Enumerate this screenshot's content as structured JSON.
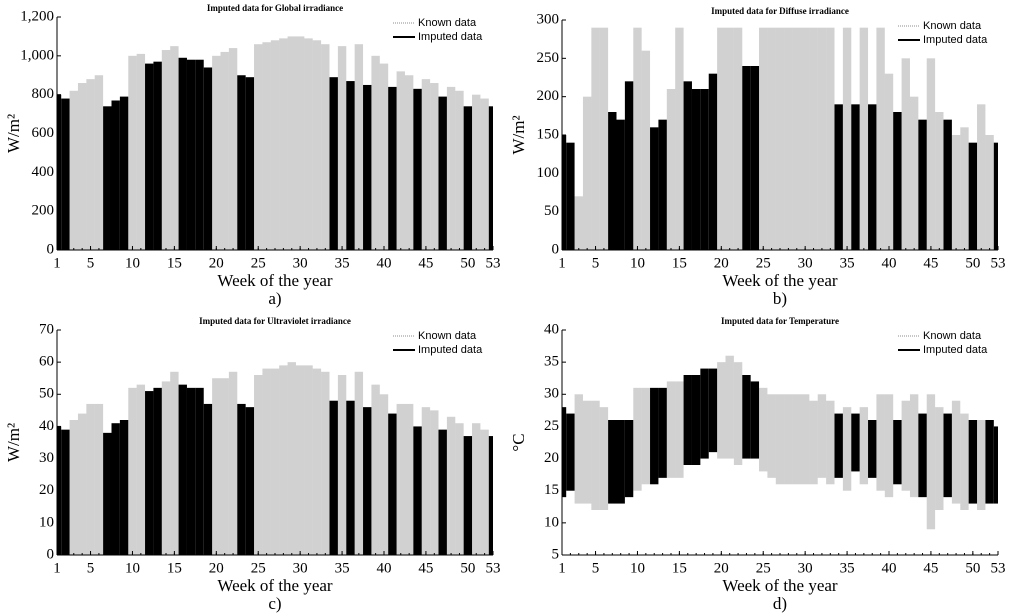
{
  "chart_data": [
    {
      "type": "bar",
      "title": "Imputed data for Global irradiance",
      "xlabel": "Week of the year",
      "ylabel": "W/m²",
      "caption": "a)",
      "x": [
        1,
        2,
        3,
        4,
        5,
        6,
        7,
        8,
        9,
        10,
        11,
        12,
        13,
        14,
        15,
        16,
        17,
        18,
        19,
        20,
        21,
        22,
        23,
        24,
        25,
        26,
        27,
        28,
        29,
        30,
        31,
        32,
        33,
        34,
        35,
        36,
        37,
        38,
        39,
        40,
        41,
        42,
        43,
        44,
        45,
        46,
        47,
        48,
        49,
        50,
        51,
        52,
        53
      ],
      "xlim": [
        1,
        53
      ],
      "xticks": [
        1,
        5,
        10,
        15,
        20,
        25,
        30,
        35,
        40,
        45,
        50,
        53
      ],
      "ylim": [
        0,
        1200
      ],
      "yticks": [
        0,
        200,
        400,
        600,
        800,
        {
          "value": 1000,
          "label": "1,000"
        },
        {
          "value": 1200,
          "label": "1,200"
        }
      ],
      "legend": "upper right",
      "series": [
        {
          "name": "Known data",
          "color": "#8c8c8c",
          "values": [
            null,
            null,
            820,
            860,
            880,
            900,
            null,
            null,
            null,
            1000,
            1010,
            null,
            null,
            1030,
            1050,
            null,
            null,
            null,
            null,
            1000,
            1020,
            1040,
            null,
            null,
            1060,
            1070,
            1080,
            1090,
            1100,
            1100,
            1090,
            1080,
            1060,
            null,
            1050,
            null,
            1060,
            null,
            1000,
            960,
            null,
            920,
            900,
            null,
            880,
            860,
            null,
            840,
            820,
            null,
            800,
            780,
            null
          ]
        },
        {
          "name": "Imputed data",
          "color": "#000000",
          "values": [
            800,
            780,
            null,
            null,
            null,
            null,
            740,
            770,
            790,
            null,
            null,
            960,
            970,
            null,
            null,
            990,
            980,
            980,
            940,
            null,
            null,
            null,
            900,
            890,
            null,
            null,
            null,
            null,
            null,
            null,
            null,
            null,
            null,
            890,
            null,
            870,
            null,
            850,
            null,
            null,
            840,
            null,
            null,
            830,
            null,
            null,
            790,
            null,
            null,
            740,
            null,
            null,
            740
          ]
        }
      ]
    },
    {
      "type": "bar",
      "title": "Imputed data for Diffuse irradiance",
      "xlabel": "Week of the year",
      "ylabel": "W/m²",
      "caption": "b)",
      "x": [
        1,
        2,
        3,
        4,
        5,
        6,
        7,
        8,
        9,
        10,
        11,
        12,
        13,
        14,
        15,
        16,
        17,
        18,
        19,
        20,
        21,
        22,
        23,
        24,
        25,
        26,
        27,
        28,
        29,
        30,
        31,
        32,
        33,
        34,
        35,
        36,
        37,
        38,
        39,
        40,
        41,
        42,
        43,
        44,
        45,
        46,
        47,
        48,
        49,
        50,
        51,
        52,
        53
      ],
      "xlim": [
        1,
        53
      ],
      "xticks": [
        1,
        5,
        10,
        15,
        20,
        25,
        30,
        35,
        40,
        45,
        50,
        53
      ],
      "ylim": [
        0,
        300
      ],
      "yticks": [
        0,
        50,
        100,
        150,
        200,
        250,
        300
      ],
      "legend": "upper right",
      "series": [
        {
          "name": "Known data",
          "color": "#8c8c8c",
          "values": [
            null,
            null,
            70,
            200,
            290,
            290,
            null,
            null,
            null,
            290,
            260,
            null,
            null,
            210,
            290,
            null,
            null,
            null,
            null,
            290,
            290,
            290,
            null,
            null,
            290,
            290,
            290,
            290,
            290,
            290,
            290,
            290,
            290,
            null,
            290,
            null,
            290,
            null,
            290,
            230,
            null,
            250,
            200,
            null,
            250,
            180,
            null,
            150,
            160,
            null,
            190,
            150,
            null
          ]
        },
        {
          "name": "Imputed data",
          "color": "#000000",
          "values": [
            150,
            140,
            null,
            null,
            null,
            null,
            180,
            170,
            220,
            null,
            null,
            160,
            170,
            null,
            null,
            220,
            210,
            210,
            230,
            null,
            null,
            null,
            240,
            240,
            null,
            null,
            null,
            null,
            null,
            null,
            null,
            null,
            null,
            190,
            null,
            190,
            null,
            190,
            null,
            null,
            180,
            null,
            null,
            170,
            null,
            null,
            170,
            null,
            null,
            140,
            null,
            null,
            140
          ]
        }
      ]
    },
    {
      "type": "bar",
      "title": "Imputed data for Ultraviolet irradiance",
      "xlabel": "Week of the year",
      "ylabel": "W/m²",
      "caption": "c)",
      "x": [
        1,
        2,
        3,
        4,
        5,
        6,
        7,
        8,
        9,
        10,
        11,
        12,
        13,
        14,
        15,
        16,
        17,
        18,
        19,
        20,
        21,
        22,
        23,
        24,
        25,
        26,
        27,
        28,
        29,
        30,
        31,
        32,
        33,
        34,
        35,
        36,
        37,
        38,
        39,
        40,
        41,
        42,
        43,
        44,
        45,
        46,
        47,
        48,
        49,
        50,
        51,
        52,
        53
      ],
      "xlim": [
        1,
        53
      ],
      "xticks": [
        1,
        5,
        10,
        15,
        20,
        25,
        30,
        35,
        40,
        45,
        50,
        53
      ],
      "ylim": [
        0,
        70
      ],
      "yticks": [
        0,
        10,
        20,
        30,
        40,
        50,
        60,
        70
      ],
      "legend": "upper right",
      "series": [
        {
          "name": "Known data",
          "color": "#8c8c8c",
          "values": [
            null,
            null,
            42,
            44,
            47,
            47,
            null,
            null,
            null,
            52,
            53,
            null,
            null,
            54,
            57,
            null,
            null,
            null,
            null,
            55,
            55,
            57,
            null,
            null,
            56,
            58,
            58,
            59,
            60,
            59,
            59,
            58,
            57,
            null,
            56,
            null,
            57,
            null,
            53,
            50,
            null,
            47,
            47,
            null,
            46,
            45,
            null,
            43,
            41,
            null,
            41,
            39,
            null
          ]
        },
        {
          "name": "Imputed data",
          "color": "#000000",
          "values": [
            40,
            39,
            null,
            null,
            null,
            null,
            38,
            41,
            42,
            null,
            null,
            51,
            52,
            null,
            null,
            53,
            52,
            52,
            47,
            null,
            null,
            null,
            47,
            46,
            null,
            null,
            null,
            null,
            null,
            null,
            null,
            null,
            null,
            48,
            null,
            48,
            null,
            46,
            null,
            null,
            44,
            null,
            null,
            40,
            null,
            null,
            39,
            null,
            null,
            37,
            null,
            null,
            37
          ]
        }
      ]
    },
    {
      "type": "bar",
      "title": "Imputed data for Temperature",
      "xlabel": "Week of the year",
      "ylabel": "°C",
      "caption": "d)",
      "x": [
        1,
        2,
        3,
        4,
        5,
        6,
        7,
        8,
        9,
        10,
        11,
        12,
        13,
        14,
        15,
        16,
        17,
        18,
        19,
        20,
        21,
        22,
        23,
        24,
        25,
        26,
        27,
        28,
        29,
        30,
        31,
        32,
        33,
        34,
        35,
        36,
        37,
        38,
        39,
        40,
        41,
        42,
        43,
        44,
        45,
        46,
        47,
        48,
        49,
        50,
        51,
        52,
        53
      ],
      "xlim": [
        1,
        53
      ],
      "xticks": [
        1,
        5,
        10,
        15,
        20,
        25,
        30,
        35,
        40,
        45,
        50,
        53
      ],
      "ylim": [
        5,
        40
      ],
      "yticks": [
        5,
        10,
        15,
        20,
        25,
        30,
        35,
        40
      ],
      "legend": "upper right",
      "series": [
        {
          "name": "Known data",
          "color": "#8c8c8c",
          "values": [
            null,
            null,
            30,
            29,
            29,
            28,
            null,
            null,
            null,
            31,
            31,
            null,
            null,
            32,
            32,
            null,
            null,
            null,
            null,
            35,
            36,
            35,
            null,
            null,
            31,
            30,
            30,
            30,
            30,
            30,
            29,
            30,
            29,
            null,
            28,
            null,
            28,
            null,
            30,
            30,
            null,
            29,
            30,
            null,
            30,
            28,
            null,
            29,
            27,
            null,
            26,
            null,
            null
          ],
          "lows": [
            null,
            null,
            13,
            13,
            12,
            12,
            null,
            null,
            null,
            15,
            16,
            null,
            null,
            17,
            17,
            null,
            null,
            null,
            null,
            20,
            20,
            19,
            null,
            null,
            18,
            17,
            16,
            16,
            16,
            16,
            16,
            17,
            16,
            null,
            15,
            null,
            16,
            null,
            15,
            14,
            null,
            15,
            14,
            null,
            9,
            12,
            null,
            13,
            12,
            null,
            12,
            null,
            null
          ]
        },
        {
          "name": "Imputed data",
          "color": "#000000",
          "values": [
            28,
            27,
            null,
            null,
            null,
            null,
            26,
            26,
            26,
            null,
            null,
            31,
            31,
            null,
            null,
            33,
            33,
            34,
            34,
            null,
            null,
            null,
            33,
            32,
            null,
            null,
            null,
            null,
            null,
            null,
            null,
            null,
            null,
            27,
            null,
            27,
            null,
            26,
            null,
            null,
            26,
            null,
            null,
            27,
            null,
            null,
            27,
            null,
            null,
            26,
            null,
            26,
            25
          ],
          "lows": [
            14,
            15,
            null,
            null,
            null,
            null,
            13,
            13,
            14,
            null,
            null,
            16,
            17,
            null,
            null,
            19,
            19,
            20,
            21,
            null,
            null,
            null,
            20,
            20,
            null,
            null,
            null,
            null,
            null,
            null,
            null,
            null,
            null,
            17,
            null,
            18,
            null,
            17,
            null,
            null,
            16,
            null,
            null,
            14,
            null,
            null,
            14,
            null,
            null,
            13,
            null,
            13,
            13
          ]
        }
      ]
    }
  ]
}
